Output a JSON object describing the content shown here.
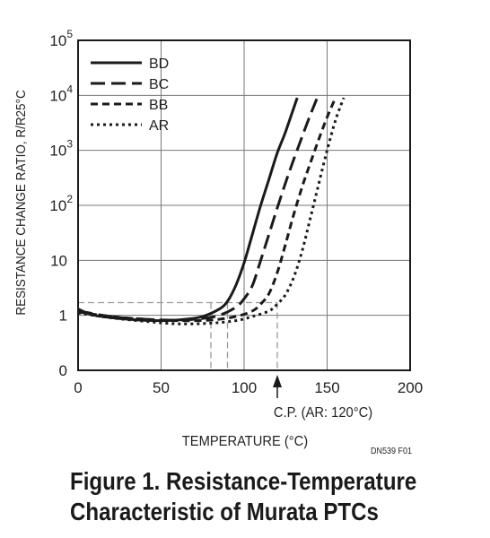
{
  "chart_data": {
    "type": "line",
    "title": "",
    "xlabel": "TEMPERATURE (°C)",
    "ylabel": "RESISTANCE CHANGE RATIO, R/R25°C",
    "xlim": [
      0,
      200
    ],
    "x_ticks": [
      "0",
      "50",
      "100",
      "150",
      "200"
    ],
    "y_scale": "log (with 0 at bottom row)",
    "y_ticks": [
      {
        "base": "0",
        "exp": ""
      },
      {
        "base": "1",
        "exp": ""
      },
      {
        "base": "10",
        "exp": ""
      },
      {
        "base": "10",
        "exp": "2"
      },
      {
        "base": "10",
        "exp": "3"
      },
      {
        "base": "10",
        "exp": "4"
      },
      {
        "base": "10",
        "exp": "5"
      }
    ],
    "grid": true,
    "legend": "top-left",
    "series": [
      {
        "name": "BD",
        "dash": "solid",
        "points": [
          [
            0,
            1.3
          ],
          [
            10,
            1.0
          ],
          [
            30,
            0.85
          ],
          [
            50,
            0.8
          ],
          [
            65,
            0.85
          ],
          [
            75,
            0.95
          ],
          [
            85,
            1.3
          ],
          [
            90,
            1.8
          ],
          [
            95,
            3.5
          ],
          [
            100,
            9
          ],
          [
            105,
            30
          ],
          [
            110,
            100
          ],
          [
            115,
            300
          ],
          [
            120,
            900
          ],
          [
            125,
            2200
          ],
          [
            132,
            9000
          ]
        ]
      },
      {
        "name": "BC",
        "dash": "long-dash",
        "points": [
          [
            0,
            1.2
          ],
          [
            20,
            0.95
          ],
          [
            40,
            0.85
          ],
          [
            60,
            0.82
          ],
          [
            75,
            0.88
          ],
          [
            85,
            1.0
          ],
          [
            95,
            1.4
          ],
          [
            100,
            2.0
          ],
          [
            105,
            3.5
          ],
          [
            110,
            10
          ],
          [
            115,
            30
          ],
          [
            120,
            90
          ],
          [
            125,
            260
          ],
          [
            130,
            700
          ],
          [
            135,
            1800
          ],
          [
            140,
            4500
          ],
          [
            144,
            9000
          ]
        ]
      },
      {
        "name": "BB",
        "dash": "short-dash",
        "points": [
          [
            0,
            1.15
          ],
          [
            20,
            0.95
          ],
          [
            40,
            0.85
          ],
          [
            60,
            0.8
          ],
          [
            80,
            0.82
          ],
          [
            95,
            0.95
          ],
          [
            105,
            1.2
          ],
          [
            110,
            1.6
          ],
          [
            115,
            2.5
          ],
          [
            120,
            6
          ],
          [
            125,
            20
          ],
          [
            130,
            70
          ],
          [
            135,
            220
          ],
          [
            140,
            600
          ],
          [
            145,
            1600
          ],
          [
            150,
            4000
          ],
          [
            155,
            9000
          ]
        ]
      },
      {
        "name": "AR",
        "dash": "dotted",
        "points": [
          [
            0,
            1.1
          ],
          [
            20,
            0.9
          ],
          [
            40,
            0.78
          ],
          [
            60,
            0.7
          ],
          [
            80,
            0.72
          ],
          [
            95,
            0.8
          ],
          [
            105,
            0.95
          ],
          [
            115,
            1.2
          ],
          [
            120,
            1.6
          ],
          [
            125,
            2.4
          ],
          [
            130,
            5
          ],
          [
            135,
            15
          ],
          [
            140,
            60
          ],
          [
            145,
            250
          ],
          [
            150,
            1000
          ],
          [
            155,
            3500
          ],
          [
            160,
            9000
          ]
        ]
      }
    ],
    "reference_lines": {
      "horizontal_value": 1.7,
      "horizontal_x_range": [
        0,
        120
      ],
      "vertical_x": [
        80,
        90,
        100,
        120
      ],
      "vertical_top_value": 1.7
    },
    "annotations": {
      "arrow_x": 120,
      "arrow_label": "C.P. (AR: 120°C)",
      "code": "DN539 F01"
    }
  },
  "caption": {
    "line1": "Figure 1. Resistance-Temperature",
    "line2": "Characteristic of Murata PTCs"
  },
  "colors": {
    "ink": "#1a1a1a",
    "grid": "#777777",
    "guide": "#999999"
  }
}
